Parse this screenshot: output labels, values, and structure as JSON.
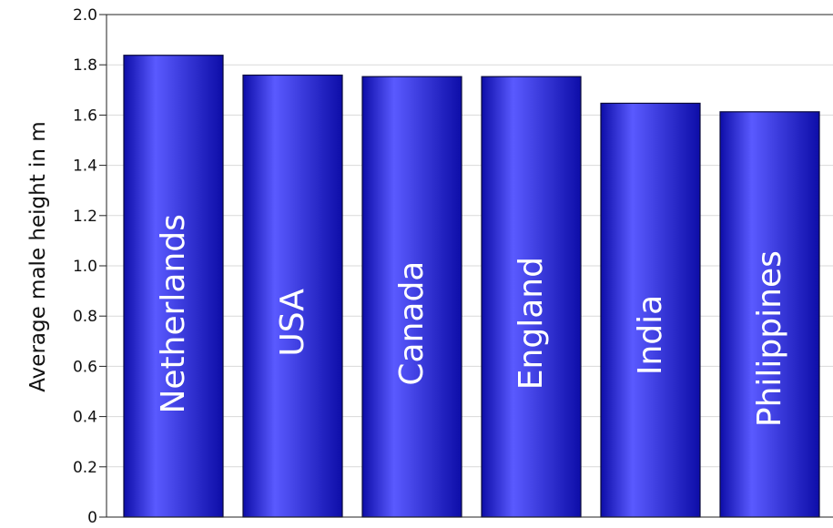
{
  "chart_data": {
    "type": "bar",
    "categories": [
      "Netherlands",
      "USA",
      "Canada",
      "England",
      "India",
      "Philippines"
    ],
    "values": [
      1.838,
      1.759,
      1.753,
      1.753,
      1.647,
      1.613
    ],
    "title": "",
    "xlabel": "",
    "ylabel": "Average male height in m",
    "ylim": [
      0,
      2.0
    ],
    "yticks": [
      "0",
      "0.2",
      "0.4",
      "0.6",
      "0.8",
      "1.0",
      "1.2",
      "1.4",
      "1.6",
      "1.8",
      "2.0"
    ],
    "grid": true,
    "bar_color": "#2a2aee",
    "bar_highlight": "#5a5aff",
    "bar_shadow": "#0d0da8",
    "label_placement": "inside-bar-vertical"
  }
}
